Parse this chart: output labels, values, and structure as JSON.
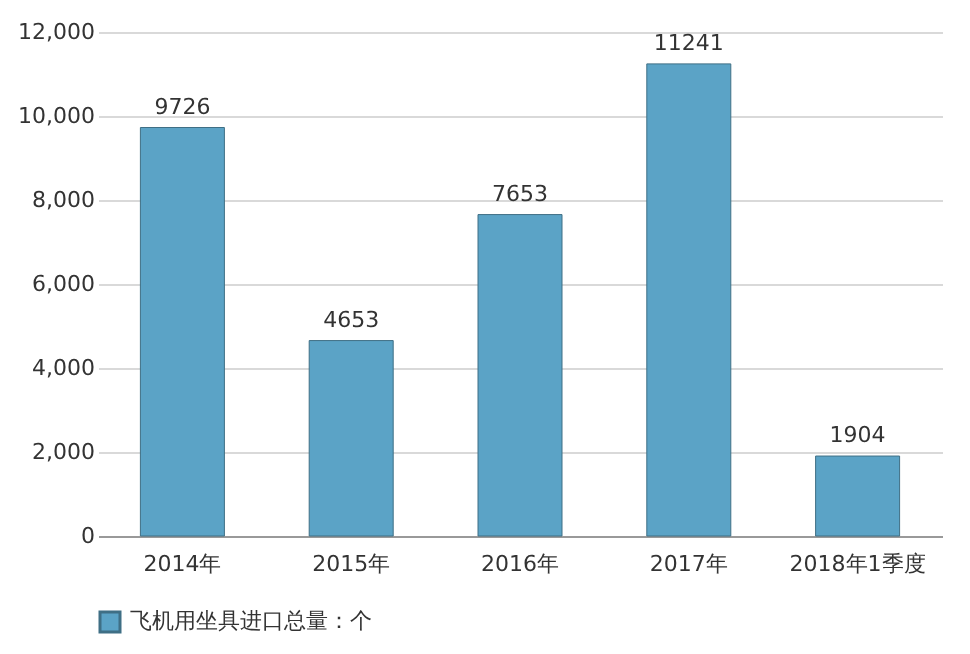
{
  "chart_data": {
    "type": "bar",
    "categories": [
      "2014年",
      "2015年",
      "2016年",
      "2017年",
      "2018年1季度"
    ],
    "series": [
      {
        "name": "飞机用坐具进口总量：个",
        "color": "#5ba3c6",
        "values": [
          9726,
          4653,
          7653,
          11241,
          1904
        ]
      }
    ],
    "ylim": [
      0,
      12000
    ],
    "yticks": [
      0,
      {
        "value": 2000,
        "label": "2,000"
      },
      {
        "value": 4000,
        "label": "4,000"
      },
      {
        "value": 6000,
        "label": "6,000"
      },
      {
        "value": 8000,
        "label": "8,000"
      },
      {
        "value": 10000,
        "label": "10,000"
      },
      {
        "value": 12000,
        "label": "12,000"
      }
    ],
    "grid": "y",
    "legend": "bottom",
    "data_labels": true
  }
}
